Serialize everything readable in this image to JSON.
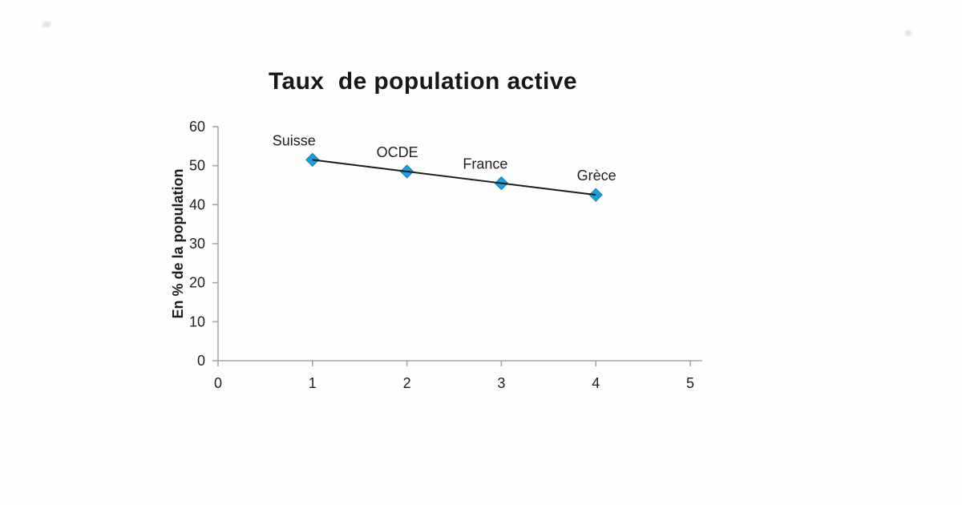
{
  "page": {
    "background": "#fefefe"
  },
  "chart_data": {
    "type": "line",
    "title": "Taux  de population active",
    "xlabel": "",
    "ylabel": "En % de la population",
    "xlim": [
      0,
      5
    ],
    "ylim": [
      0,
      60
    ],
    "x_ticks": [
      "0",
      "1",
      "2",
      "3",
      "4",
      "5"
    ],
    "y_ticks": [
      "0",
      "10",
      "20",
      "30",
      "40",
      "50",
      "60"
    ],
    "grid": false,
    "legend": "none",
    "marker": "diamond",
    "colors": {
      "marker_fill": "#219ed8",
      "marker_edge": "#1480b8",
      "line": "#1c1c1c",
      "axis": "#a6a6a6",
      "text": "#1f1f1f"
    },
    "series": [
      {
        "name": "Taux de population active",
        "points": [
          {
            "label": "Suisse",
            "x": 1,
            "y": 51.5,
            "label_dx": -23
          },
          {
            "label": "OCDE",
            "x": 2,
            "y": 48.5,
            "label_dx": -12
          },
          {
            "label": "France",
            "x": 3,
            "y": 45.5,
            "label_dx": -20
          },
          {
            "label": "Grèce",
            "x": 4,
            "y": 42.5,
            "label_dx": 1
          }
        ]
      }
    ]
  }
}
